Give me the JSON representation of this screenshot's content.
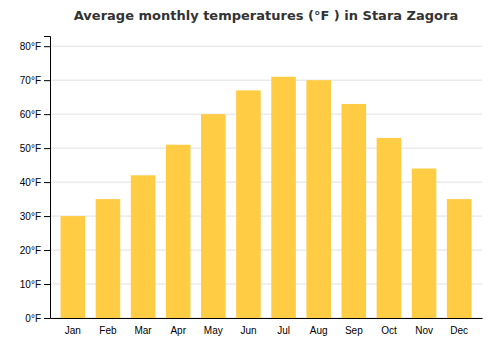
{
  "chart_data": {
    "type": "bar",
    "title": "Average monthly temperatures (°F ) in Stara Zagora",
    "categories": [
      "Jan",
      "Feb",
      "Mar",
      "Apr",
      "May",
      "Jun",
      "Jul",
      "Aug",
      "Sep",
      "Oct",
      "Nov",
      "Dec"
    ],
    "values": [
      30,
      35,
      42,
      51,
      60,
      67,
      71,
      70,
      63,
      53,
      44,
      35
    ],
    "color": "#FFCC44",
    "ylim": [
      0,
      83
    ],
    "yticks": [
      {
        "value": 0,
        "label": "0°F"
      },
      {
        "value": 10,
        "label": "10°F"
      },
      {
        "value": 20,
        "label": "20°F"
      },
      {
        "value": 30,
        "label": "30°F"
      },
      {
        "value": 40,
        "label": "40°F"
      },
      {
        "value": 50,
        "label": "50°F"
      },
      {
        "value": 60,
        "label": "60°F"
      },
      {
        "value": 70,
        "label": "70°F"
      },
      {
        "value": 80,
        "label": "80°F"
      }
    ],
    "grid": true
  }
}
